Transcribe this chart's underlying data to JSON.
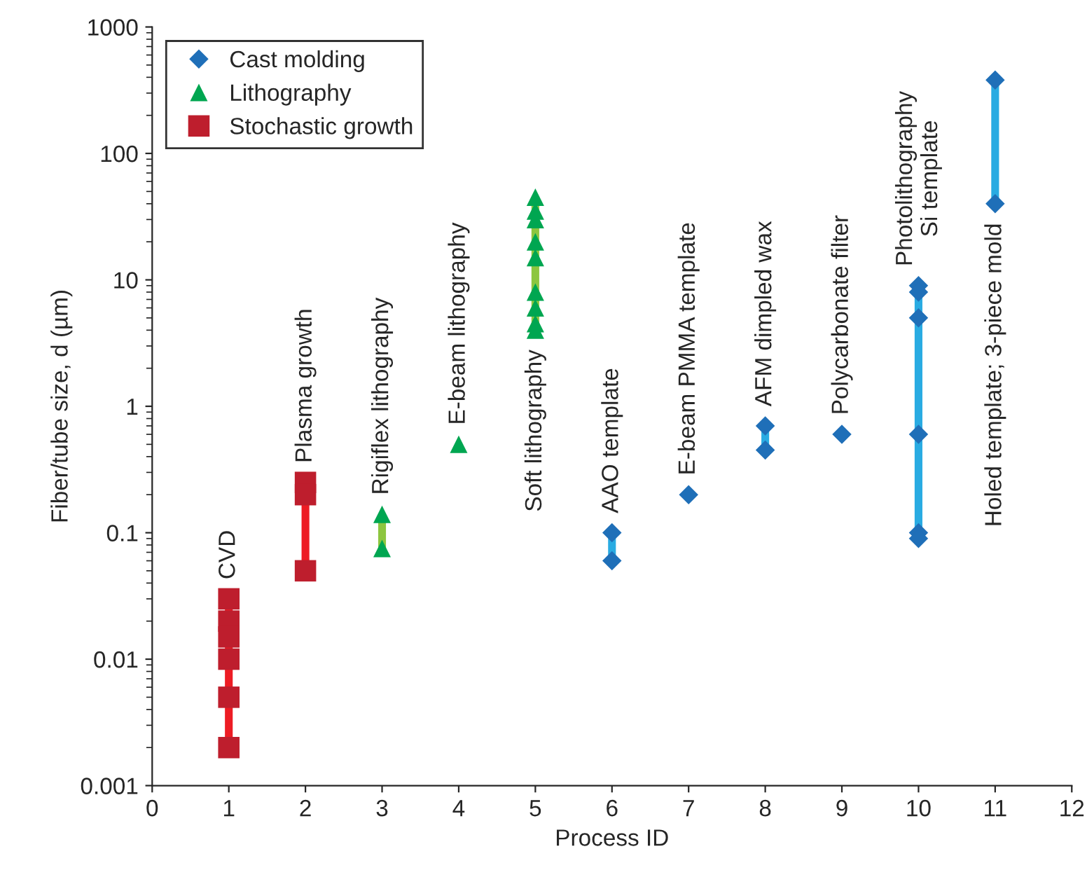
{
  "chart_data": {
    "type": "scatter",
    "xlabel": "Process ID",
    "ylabel": "Fiber/tube size, d (µm)",
    "log": "y",
    "xlim": [
      0,
      12
    ],
    "xticks": [
      0,
      1,
      2,
      3,
      4,
      5,
      6,
      7,
      8,
      9,
      10,
      11,
      12
    ],
    "ylim": [
      0.001,
      1000
    ],
    "yticks": [
      0.001,
      0.01,
      0.1,
      1,
      10,
      100,
      1000
    ],
    "grid": false,
    "legend": "top left",
    "series": [
      {
        "type": "line",
        "color": "#ed1c24",
        "x": [
          1,
          1
        ],
        "values": [
          0.002,
          0.03
        ]
      },
      {
        "type": "line",
        "color": "#ed1c24",
        "x": [
          2,
          2
        ],
        "values": [
          0.05,
          0.25
        ]
      },
      {
        "type": "line",
        "color": "#8dc63f",
        "x": [
          3,
          3
        ],
        "values": [
          0.075,
          0.14
        ]
      },
      {
        "type": "line",
        "color": "#8dc63f",
        "x": [
          5,
          5
        ],
        "values": [
          4,
          45
        ]
      },
      {
        "type": "line",
        "color": "#29abe2",
        "x": [
          6,
          6
        ],
        "values": [
          0.06,
          0.1
        ]
      },
      {
        "type": "line",
        "color": "#29abe2",
        "x": [
          8,
          8
        ],
        "values": [
          0.45,
          0.7
        ]
      },
      {
        "type": "line",
        "color": "#29abe2",
        "x": [
          10,
          10
        ],
        "values": [
          0.09,
          9
        ]
      },
      {
        "type": "line",
        "color": "#29abe2",
        "x": [
          11,
          11
        ],
        "values": [
          40,
          380
        ]
      },
      {
        "name": "Cast molding",
        "color": "#1f6fb8",
        "marker": "diamond",
        "x": [
          6,
          6,
          7,
          8,
          8,
          9,
          10,
          10,
          10,
          10,
          10,
          10,
          11,
          11
        ],
        "values": [
          0.1,
          0.06,
          0.2,
          0.7,
          0.45,
          0.6,
          9,
          8,
          5,
          0.6,
          0.1,
          0.09,
          380,
          40
        ]
      },
      {
        "name": "Lithography",
        "color": "#00a651",
        "marker": "triangle",
        "x": [
          3,
          3,
          4,
          5,
          5,
          5,
          5,
          5,
          5,
          5,
          5,
          5
        ],
        "values": [
          0.14,
          0.075,
          0.5,
          45,
          35,
          30,
          20,
          15,
          8,
          6,
          4.5,
          4
        ]
      },
      {
        "name": "Stochastic growth",
        "color": "#be1e2d",
        "marker": "square",
        "x": [
          1,
          1,
          1,
          1,
          1,
          1,
          2,
          2,
          2
        ],
        "values": [
          0.03,
          0.02,
          0.015,
          0.01,
          0.005,
          0.002,
          0.25,
          0.2,
          0.05
        ]
      }
    ],
    "annotations": [
      {
        "text": "CVD",
        "x": 1,
        "y": 0.03
      },
      {
        "text": "Plasma growth",
        "x": 2,
        "y": 0.25
      },
      {
        "text": "Rigiflex lithography",
        "x": 3,
        "y": 0.14
      },
      {
        "text": "E-beam lithography",
        "x": 4,
        "y": 0.5
      },
      {
        "text": "Soft lithography",
        "x": 5,
        "y": 4
      },
      {
        "text": "AAO template",
        "x": 6,
        "y": 0.1
      },
      {
        "text": "E-beam PMMA template",
        "x": 7,
        "y": 0.2
      },
      {
        "text": "AFM dimpled wax",
        "x": 8,
        "y": 0.7
      },
      {
        "text": "Polycarbonate filter",
        "x": 9,
        "y": 0.6
      },
      {
        "text": "Photolithography\nSi template",
        "x": 10,
        "y": 9
      },
      {
        "text": "Holed template; 3-piece mold",
        "x": 11,
        "y": 40
      }
    ]
  }
}
